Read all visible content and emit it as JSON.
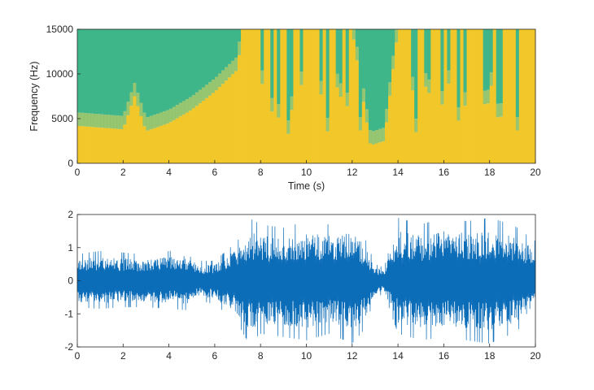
{
  "chart_data": [
    {
      "type": "heatmap",
      "title": "",
      "xlabel": "Time (s)",
      "ylabel": "Frequency (Hz)",
      "xlim": [
        0,
        20
      ],
      "ylim": [
        0,
        15000
      ],
      "xticks": [
        0,
        2,
        4,
        6,
        8,
        10,
        12,
        14,
        16,
        18,
        20
      ],
      "yticks": [
        0,
        5000,
        10000,
        15000
      ],
      "grid": false,
      "colors": {
        "high_energy": "#f2c72a",
        "mid_energy": "#8cc063",
        "low_energy": "#3fb58a"
      },
      "energy_cutoff_hz": {
        "x": [
          0,
          1,
          2,
          2.5,
          3,
          4,
          5,
          6,
          7,
          7.2,
          8,
          9,
          10,
          11,
          12,
          12.8,
          13.4,
          14,
          15,
          16,
          17,
          18,
          19,
          20
        ],
        "values": [
          4200,
          4000,
          3800,
          7500,
          3600,
          4500,
          6000,
          8000,
          10500,
          15000,
          15000,
          15000,
          15000,
          15000,
          15000,
          2000,
          2500,
          15000,
          15000,
          15000,
          15000,
          15000,
          15000,
          15000
        ]
      }
    },
    {
      "type": "line",
      "title": "",
      "xlabel": "",
      "ylabel": "",
      "xlim": [
        0,
        20
      ],
      "ylim": [
        -2,
        2
      ],
      "xticks": [
        0,
        2,
        4,
        6,
        8,
        10,
        12,
        14,
        16,
        18,
        20
      ],
      "yticks": [
        -2,
        -1,
        0,
        1,
        2
      ],
      "grid": false,
      "series_color": "#0b6cb8",
      "envelope": {
        "x": [
          0,
          1,
          2,
          3,
          4,
          5,
          5.2,
          6,
          7,
          7.5,
          8,
          9,
          10,
          11,
          12,
          12.5,
          13,
          13.4,
          14,
          15,
          16,
          17,
          18,
          19,
          20
        ],
        "upper": [
          0.8,
          0.9,
          0.85,
          0.8,
          0.9,
          0.95,
          0.6,
          0.6,
          1.2,
          1.9,
          1.7,
          1.6,
          1.8,
          1.7,
          1.9,
          1.4,
          0.5,
          0.4,
          1.9,
          1.7,
          1.9,
          1.8,
          1.9,
          1.7,
          1.2
        ],
        "lower": [
          -0.8,
          -0.85,
          -0.8,
          -0.8,
          -0.85,
          -0.9,
          -0.6,
          -0.7,
          -1.3,
          -1.9,
          -1.6,
          -1.7,
          -1.8,
          -1.6,
          -1.9,
          -1.5,
          -0.5,
          -0.4,
          -1.6,
          -1.8,
          -1.7,
          -1.8,
          -1.9,
          -1.6,
          -1.1
        ]
      }
    }
  ]
}
